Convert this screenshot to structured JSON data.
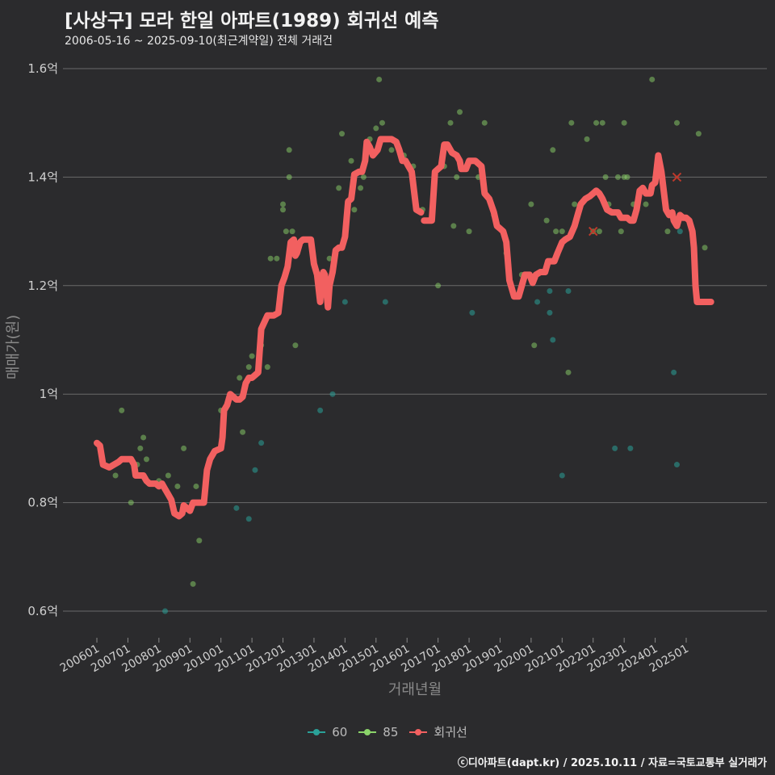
{
  "title": "[사상구] 모라 한일 아파트(1989) 회귀선 예측",
  "subtitle": "2006-05-16 ~ 2025-09-10(최근계약일) 전체 거래건",
  "credit": "ⓒ디아파트(dapt.kr) / 2025.10.11 / 자료=국토교통부 실거래가",
  "colors": {
    "bg": "#2b2b2d",
    "grid": "#6a6a6a",
    "s60": "#2aa198",
    "s85": "#8bd46a",
    "reg": "#f26060"
  },
  "legend": [
    {
      "label": "60",
      "color": "#2aa198"
    },
    {
      "label": "85",
      "color": "#8bd46a"
    },
    {
      "label": "회귀선",
      "color": "#f26060"
    }
  ],
  "chart_data": {
    "type": "scatter",
    "title": "[사상구] 모라 한일 아파트(1989) 회귀선 예측",
    "xlabel": "거래년월",
    "ylabel": "매매가(원)",
    "ylim": [
      0.55,
      1.62
    ],
    "y_ticks": [
      0.6,
      0.8,
      1.0,
      1.2,
      1.4,
      1.6
    ],
    "y_tick_labels": [
      "0.6억",
      "0.8억",
      "1억",
      "1.2억",
      "1.4억",
      "1.6억"
    ],
    "x_ticks": [
      "200601",
      "200701",
      "200801",
      "200901",
      "201001",
      "201101",
      "201201",
      "201301",
      "201401",
      "201501",
      "201601",
      "201701",
      "201801",
      "201901",
      "202001",
      "202101",
      "202201",
      "202301",
      "202401",
      "202501"
    ],
    "series": [
      {
        "name": "60",
        "points": [
          [
            2008.2,
            0.6
          ],
          [
            2010.5,
            0.79
          ],
          [
            2011.1,
            0.86
          ],
          [
            2011.3,
            0.91
          ],
          [
            2010.9,
            0.77
          ],
          [
            2013.2,
            0.97
          ],
          [
            2013.6,
            1.0
          ],
          [
            2014.0,
            1.17
          ],
          [
            2015.3,
            1.17
          ],
          [
            2018.1,
            1.15
          ],
          [
            2020.2,
            1.17
          ],
          [
            2020.6,
            1.19
          ],
          [
            2020.6,
            1.15
          ],
          [
            2020.7,
            1.1
          ],
          [
            2021.0,
            0.85
          ],
          [
            2021.2,
            1.19
          ],
          [
            2022.7,
            0.9
          ],
          [
            2023.2,
            0.9
          ],
          [
            2024.6,
            1.04
          ],
          [
            2024.7,
            0.87
          ],
          [
            2024.8,
            1.3
          ]
        ]
      },
      {
        "name": "85",
        "points": [
          [
            2006.6,
            0.85
          ],
          [
            2006.8,
            0.97
          ],
          [
            2007.1,
            0.8
          ],
          [
            2007.3,
            0.87
          ],
          [
            2007.4,
            0.9
          ],
          [
            2007.5,
            0.92
          ],
          [
            2007.6,
            0.88
          ],
          [
            2008.0,
            0.84
          ],
          [
            2008.3,
            0.85
          ],
          [
            2008.6,
            0.83
          ],
          [
            2008.8,
            0.9
          ],
          [
            2009.1,
            0.65
          ],
          [
            2009.3,
            0.73
          ],
          [
            2009.2,
            0.83
          ],
          [
            2010.0,
            0.97
          ],
          [
            2010.6,
            1.03
          ],
          [
            2010.7,
            0.93
          ],
          [
            2010.9,
            1.05
          ],
          [
            2011.0,
            1.07
          ],
          [
            2011.3,
            1.09
          ],
          [
            2011.5,
            1.05
          ],
          [
            2011.6,
            1.25
          ],
          [
            2011.8,
            1.25
          ],
          [
            2012.0,
            1.35
          ],
          [
            2012.0,
            1.34
          ],
          [
            2012.1,
            1.3
          ],
          [
            2012.2,
            1.45
          ],
          [
            2012.2,
            1.4
          ],
          [
            2012.3,
            1.3
          ],
          [
            2012.4,
            1.09
          ],
          [
            2013.5,
            1.25
          ],
          [
            2013.8,
            1.38
          ],
          [
            2013.9,
            1.48
          ],
          [
            2014.2,
            1.43
          ],
          [
            2014.3,
            1.34
          ],
          [
            2014.5,
            1.38
          ],
          [
            2014.6,
            1.4
          ],
          [
            2014.8,
            1.47
          ],
          [
            2015.0,
            1.49
          ],
          [
            2015.1,
            1.58
          ],
          [
            2015.2,
            1.5
          ],
          [
            2015.5,
            1.45
          ],
          [
            2015.9,
            1.44
          ],
          [
            2016.2,
            1.42
          ],
          [
            2016.5,
            1.34
          ],
          [
            2017.0,
            1.2
          ],
          [
            2017.2,
            1.42
          ],
          [
            2017.4,
            1.5
          ],
          [
            2017.5,
            1.31
          ],
          [
            2017.6,
            1.4
          ],
          [
            2017.7,
            1.52
          ],
          [
            2018.0,
            1.3
          ],
          [
            2018.3,
            1.4
          ],
          [
            2018.5,
            1.5
          ],
          [
            2018.8,
            1.33
          ],
          [
            2019.2,
            1.26
          ],
          [
            2019.7,
            1.22
          ],
          [
            2020.0,
            1.35
          ],
          [
            2020.1,
            1.09
          ],
          [
            2020.5,
            1.32
          ],
          [
            2020.7,
            1.45
          ],
          [
            2020.8,
            1.3
          ],
          [
            2021.0,
            1.3
          ],
          [
            2021.2,
            1.04
          ],
          [
            2021.3,
            1.5
          ],
          [
            2021.4,
            1.35
          ],
          [
            2021.8,
            1.47
          ],
          [
            2022.0,
            1.3
          ],
          [
            2022.1,
            1.5
          ],
          [
            2022.2,
            1.3
          ],
          [
            2022.3,
            1.5
          ],
          [
            2022.4,
            1.4
          ],
          [
            2022.5,
            1.35
          ],
          [
            2022.8,
            1.4
          ],
          [
            2022.9,
            1.3
          ],
          [
            2023.0,
            1.5
          ],
          [
            2023.0,
            1.4
          ],
          [
            2023.1,
            1.4
          ],
          [
            2023.3,
            1.35
          ],
          [
            2023.7,
            1.35
          ],
          [
            2023.9,
            1.58
          ],
          [
            2024.0,
            1.4
          ],
          [
            2024.4,
            1.3
          ],
          [
            2024.7,
            1.5
          ],
          [
            2025.4,
            1.48
          ],
          [
            2025.6,
            1.27
          ]
        ]
      },
      {
        "name": "회귀선",
        "points": [
          [
            2006.0,
            0.91
          ],
          [
            2006.1,
            0.905
          ],
          [
            2006.2,
            0.87
          ],
          [
            2006.4,
            0.865
          ],
          [
            2006.55,
            0.87
          ],
          [
            2006.7,
            0.875
          ],
          [
            2006.8,
            0.88
          ],
          [
            2007.1,
            0.88
          ],
          [
            2007.2,
            0.87
          ],
          [
            2007.25,
            0.85
          ],
          [
            2007.5,
            0.85
          ],
          [
            2007.6,
            0.84
          ],
          [
            2007.7,
            0.835
          ],
          [
            2007.9,
            0.835
          ],
          [
            2008.0,
            0.83
          ],
          [
            2008.1,
            0.835
          ],
          [
            2008.2,
            0.825
          ],
          [
            2008.3,
            0.815
          ],
          [
            2008.4,
            0.805
          ],
          [
            2008.5,
            0.78
          ],
          [
            2008.65,
            0.775
          ],
          [
            2008.75,
            0.78
          ],
          [
            2008.8,
            0.795
          ],
          [
            2008.9,
            0.79
          ],
          [
            2009.0,
            0.785
          ],
          [
            2009.1,
            0.8
          ],
          [
            2009.2,
            0.8
          ],
          [
            2009.45,
            0.8
          ],
          [
            2009.55,
            0.86
          ],
          [
            2009.65,
            0.88
          ],
          [
            2009.8,
            0.895
          ],
          [
            2010.0,
            0.9
          ],
          [
            2010.05,
            0.92
          ],
          [
            2010.1,
            0.97
          ],
          [
            2010.2,
            0.98
          ],
          [
            2010.3,
            1.0
          ],
          [
            2010.4,
            0.995
          ],
          [
            2010.5,
            0.99
          ],
          [
            2010.6,
            0.99
          ],
          [
            2010.7,
            0.995
          ],
          [
            2010.8,
            1.02
          ],
          [
            2010.9,
            1.03
          ],
          [
            2011.0,
            1.03
          ],
          [
            2011.2,
            1.04
          ],
          [
            2011.3,
            1.12
          ],
          [
            2011.5,
            1.145
          ],
          [
            2011.7,
            1.145
          ],
          [
            2011.85,
            1.15
          ],
          [
            2011.95,
            1.2
          ],
          [
            2012.05,
            1.215
          ],
          [
            2012.15,
            1.235
          ],
          [
            2012.25,
            1.28
          ],
          [
            2012.35,
            1.285
          ],
          [
            2012.4,
            1.255
          ],
          [
            2012.45,
            1.26
          ],
          [
            2012.55,
            1.28
          ],
          [
            2012.65,
            1.285
          ],
          [
            2012.9,
            1.285
          ],
          [
            2013.0,
            1.24
          ],
          [
            2013.1,
            1.22
          ],
          [
            2013.2,
            1.17
          ],
          [
            2013.25,
            1.215
          ],
          [
            2013.3,
            1.225
          ],
          [
            2013.35,
            1.22
          ],
          [
            2013.45,
            1.16
          ],
          [
            2013.5,
            1.2
          ],
          [
            2013.6,
            1.225
          ],
          [
            2013.7,
            1.265
          ],
          [
            2013.8,
            1.27
          ],
          [
            2013.9,
            1.27
          ],
          [
            2014.0,
            1.29
          ],
          [
            2014.1,
            1.355
          ],
          [
            2014.2,
            1.36
          ],
          [
            2014.3,
            1.405
          ],
          [
            2014.45,
            1.41
          ],
          [
            2014.55,
            1.41
          ],
          [
            2014.65,
            1.43
          ],
          [
            2014.7,
            1.465
          ],
          [
            2014.8,
            1.455
          ],
          [
            2014.9,
            1.44
          ],
          [
            2015.05,
            1.45
          ],
          [
            2015.15,
            1.47
          ],
          [
            2015.3,
            1.47
          ],
          [
            2015.5,
            1.47
          ],
          [
            2015.65,
            1.465
          ],
          [
            2015.75,
            1.45
          ],
          [
            2015.85,
            1.43
          ],
          [
            2015.95,
            1.43
          ],
          [
            2016.05,
            1.42
          ],
          [
            2016.15,
            1.41
          ],
          [
            2016.3,
            1.34
          ],
          [
            2016.45,
            1.335
          ],
          [
            null,
            null
          ],
          [
            2016.55,
            1.32
          ],
          [
            2016.8,
            1.32
          ],
          [
            2016.9,
            1.41
          ],
          [
            2017.0,
            1.415
          ],
          [
            2017.1,
            1.42
          ],
          [
            2017.2,
            1.46
          ],
          [
            2017.3,
            1.46
          ],
          [
            2017.45,
            1.445
          ],
          [
            2017.6,
            1.44
          ],
          [
            2017.7,
            1.43
          ],
          [
            2017.75,
            1.415
          ],
          [
            2017.9,
            1.415
          ],
          [
            2018.0,
            1.43
          ],
          [
            2018.2,
            1.43
          ],
          [
            2018.3,
            1.425
          ],
          [
            2018.4,
            1.42
          ],
          [
            2018.5,
            1.37
          ],
          [
            2018.65,
            1.36
          ],
          [
            2018.8,
            1.335
          ],
          [
            2018.9,
            1.31
          ],
          [
            2019.0,
            1.305
          ],
          [
            2019.1,
            1.3
          ],
          [
            2019.2,
            1.28
          ],
          [
            2019.3,
            1.21
          ],
          [
            2019.45,
            1.18
          ],
          [
            2019.6,
            1.18
          ],
          [
            2019.7,
            1.2
          ],
          [
            2019.8,
            1.22
          ],
          [
            2019.95,
            1.22
          ],
          [
            2020.05,
            1.205
          ],
          [
            2020.15,
            1.22
          ],
          [
            2020.3,
            1.225
          ],
          [
            2020.45,
            1.225
          ],
          [
            2020.55,
            1.245
          ],
          [
            2020.75,
            1.245
          ],
          [
            2020.85,
            1.26
          ],
          [
            2021.0,
            1.28
          ],
          [
            2021.1,
            1.285
          ],
          [
            2021.25,
            1.29
          ],
          [
            2021.4,
            1.31
          ],
          [
            2021.5,
            1.33
          ],
          [
            2021.6,
            1.35
          ],
          [
            2021.75,
            1.36
          ],
          [
            2021.9,
            1.365
          ],
          [
            2022.0,
            1.37
          ],
          [
            2022.1,
            1.375
          ],
          [
            2022.2,
            1.37
          ],
          [
            2022.3,
            1.36
          ],
          [
            2022.45,
            1.34
          ],
          [
            2022.6,
            1.335
          ],
          [
            2022.8,
            1.335
          ],
          [
            2022.9,
            1.325
          ],
          [
            2023.1,
            1.325
          ],
          [
            2023.2,
            1.32
          ],
          [
            2023.3,
            1.32
          ],
          [
            2023.4,
            1.34
          ],
          [
            2023.5,
            1.375
          ],
          [
            2023.6,
            1.38
          ],
          [
            2023.7,
            1.37
          ],
          [
            2023.85,
            1.37
          ],
          [
            2023.9,
            1.385
          ],
          [
            2024.0,
            1.39
          ],
          [
            2024.1,
            1.44
          ],
          [
            2024.2,
            1.41
          ],
          [
            2024.35,
            1.34
          ],
          [
            2024.45,
            1.33
          ],
          [
            2024.55,
            1.335
          ],
          [
            2024.6,
            1.32
          ],
          [
            2024.7,
            1.31
          ],
          [
            2024.8,
            1.33
          ],
          [
            2024.9,
            1.325
          ],
          [
            2025.0,
            1.325
          ],
          [
            2025.1,
            1.32
          ],
          [
            2025.2,
            1.3
          ],
          [
            2025.25,
            1.27
          ],
          [
            2025.3,
            1.2
          ],
          [
            2025.35,
            1.17
          ],
          [
            2025.5,
            1.17
          ],
          [
            2025.7,
            1.17
          ],
          [
            2025.8,
            1.17
          ]
        ]
      }
    ],
    "markers_x": [
      [
        2022.0,
        1.3
      ],
      [
        2024.7,
        1.4
      ]
    ]
  }
}
